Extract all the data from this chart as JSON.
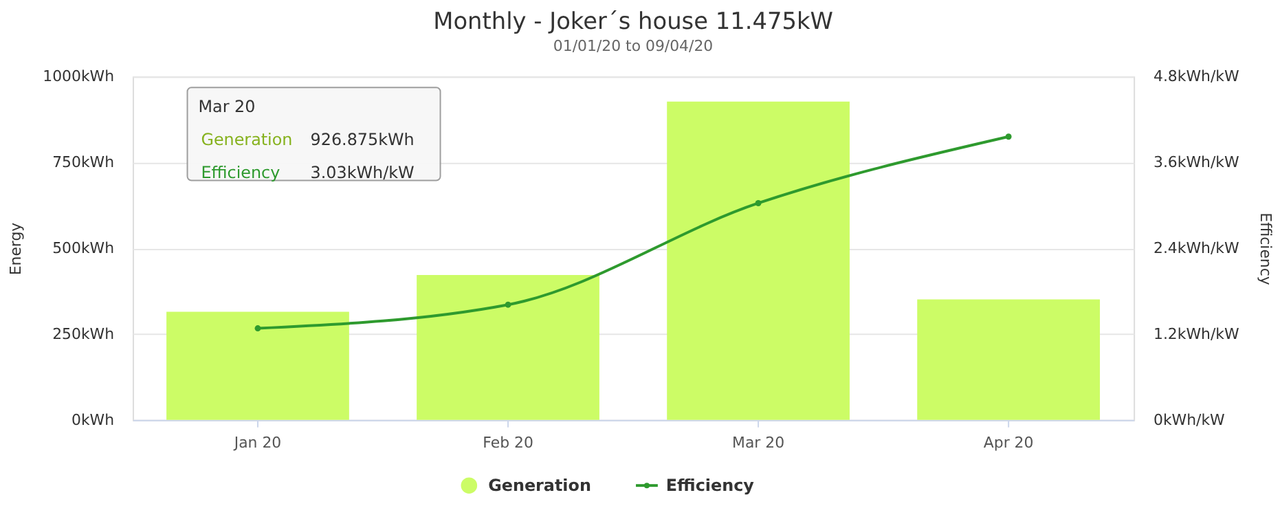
{
  "chart_data": {
    "type": "bar",
    "title": "Monthly - Joker´s house 11.475kW",
    "subtitle": "01/01/20 to 09/04/20",
    "categories": [
      "Jan 20",
      "Feb 20",
      "Mar 20",
      "Apr 20"
    ],
    "series": [
      {
        "name": "Generation",
        "color": "#ccfc66",
        "values": [
          315,
          422,
          926.875,
          351
        ]
      },
      {
        "name": "Efficiency",
        "type": "line",
        "axis": "y2",
        "color": "#2e9a2e",
        "marker": "circle",
        "values": [
          1.28,
          1.61,
          3.03,
          3.96
        ]
      }
    ],
    "ylabel": "Energy",
    "y2label": "Efficiency",
    "ylim": [
      0,
      1000
    ],
    "yticks": [
      {
        "value": 0,
        "label": "0kWh"
      },
      {
        "value": 250,
        "label": "250kWh"
      },
      {
        "value": 500,
        "label": "500kWh"
      },
      {
        "value": 750,
        "label": "750kWh"
      },
      {
        "value": 1000,
        "label": "1000kWh"
      }
    ],
    "y2lim": [
      0,
      4.8
    ],
    "y2ticks": [
      {
        "value": 0,
        "label": "0kWh/kW"
      },
      {
        "value": 1.2,
        "label": "1.2kWh/kW"
      },
      {
        "value": 2.4,
        "label": "2.4kWh/kW"
      },
      {
        "value": 3.6,
        "label": "3.6kWh/kW"
      },
      {
        "value": 4.8,
        "label": "4.8kWh/kW"
      }
    ],
    "annotations": [
      "Mar 20",
      "Generation",
      "926.875kWh",
      "Efficiency",
      "3.03kWh/kW"
    ],
    "grid": "y",
    "legend": "bottom"
  }
}
